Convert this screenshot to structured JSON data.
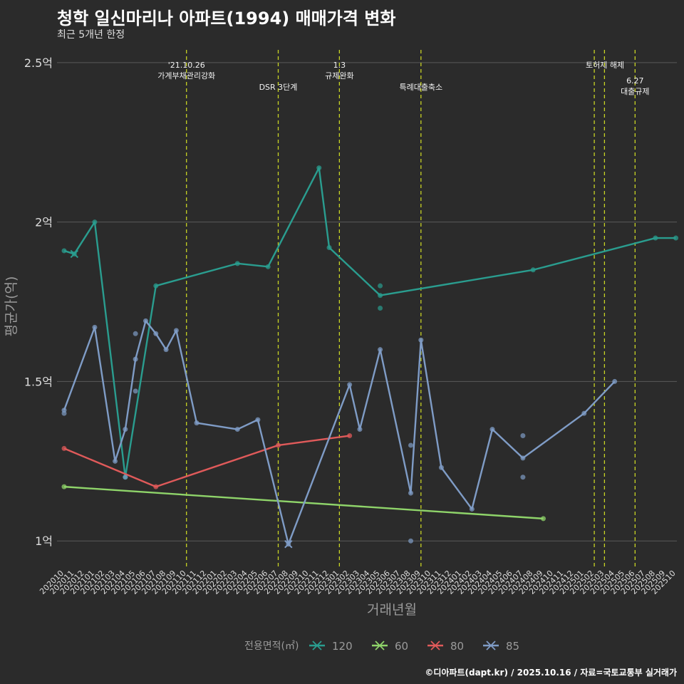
{
  "title": "청학 일신마리나 아파트(1994) 매매가격 변화",
  "subtitle": "최근 5개년 한정",
  "caption": "©디아파트(dapt.kr) / 2025.10.16 / 자료=국토교통부 실거래가",
  "chart_data": {
    "type": "line",
    "xlabel": "거래년월",
    "ylabel": "평균가(억)",
    "y_unit": "억",
    "ylim": [
      0.92,
      2.54
    ],
    "y_ticks": [
      1.0,
      1.5,
      2.0,
      2.5
    ],
    "y_tick_labels": [
      "1억",
      "1.5억",
      "2억",
      "2.5억"
    ],
    "grid": true,
    "categories": [
      "202010",
      "202011",
      "202012",
      "202101",
      "202102",
      "202103",
      "202104",
      "202105",
      "202106",
      "202107",
      "202108",
      "202109",
      "202110",
      "202111",
      "202112",
      "202201",
      "202202",
      "202203",
      "202204",
      "202205",
      "202206",
      "202207",
      "202208",
      "202209",
      "202210",
      "202211",
      "202212",
      "202301",
      "202302",
      "202303",
      "202304",
      "202305",
      "202306",
      "202307",
      "202308",
      "202309",
      "202310",
      "202311",
      "202312",
      "202401",
      "202402",
      "202403",
      "202404",
      "202405",
      "202406",
      "202407",
      "202408",
      "202409",
      "202410",
      "202411",
      "202412",
      "202501",
      "202502",
      "202503",
      "202504",
      "202505",
      "202506",
      "202507",
      "202508",
      "202509",
      "202510"
    ],
    "legend_title": "전용면적(㎡)",
    "legend_position": "bottom",
    "series": [
      {
        "name": "120",
        "color": "#2a9d8f",
        "line": [
          [
            "202010",
            1.91
          ],
          [
            "202011",
            1.9
          ],
          [
            "202101",
            2.0
          ],
          [
            "202104",
            1.2
          ],
          [
            "202107",
            1.8
          ],
          [
            "202203",
            1.87
          ],
          [
            "202206",
            1.86
          ],
          [
            "202211",
            2.17
          ],
          [
            "202212",
            1.92
          ],
          [
            "202305",
            1.77
          ],
          [
            "202408",
            1.85
          ],
          [
            "202508",
            1.95
          ],
          [
            "202510",
            1.95
          ]
        ],
        "extra_points": [
          [
            "202305",
            1.8
          ],
          [
            "202305",
            1.73
          ]
        ],
        "cross_points": [
          [
            "202011",
            1.9
          ]
        ]
      },
      {
        "name": "60",
        "color": "#8fd46a",
        "line": [
          [
            "202010",
            1.17
          ],
          [
            "202409",
            1.07
          ]
        ],
        "extra_points": [],
        "cross_points": []
      },
      {
        "name": "80",
        "color": "#e05a5a",
        "line": [
          [
            "202010",
            1.29
          ],
          [
            "202107",
            1.17
          ],
          [
            "202207",
            1.3
          ],
          [
            "202302",
            1.33
          ]
        ],
        "extra_points": [],
        "cross_points": []
      },
      {
        "name": "85",
        "color": "#7f9cc6",
        "line": [
          [
            "202010",
            1.41
          ],
          [
            "202101",
            1.67
          ],
          [
            "202103",
            1.25
          ],
          [
            "202104",
            1.35
          ],
          [
            "202105",
            1.57
          ],
          [
            "202106",
            1.69
          ],
          [
            "202107",
            1.65
          ],
          [
            "202108",
            1.6
          ],
          [
            "202109",
            1.66
          ],
          [
            "202111",
            1.37
          ],
          [
            "202203",
            1.35
          ],
          [
            "202205",
            1.38
          ],
          [
            "202208",
            0.99
          ],
          [
            "202302",
            1.49
          ],
          [
            "202303",
            1.35
          ],
          [
            "202305",
            1.6
          ],
          [
            "202308",
            1.15
          ],
          [
            "202309",
            1.63
          ],
          [
            "202311",
            1.23
          ],
          [
            "202402",
            1.1
          ],
          [
            "202404",
            1.35
          ],
          [
            "202407",
            1.26
          ],
          [
            "202501",
            1.4
          ],
          [
            "202504",
            1.5
          ]
        ],
        "extra_points": [
          [
            "202010",
            1.4
          ],
          [
            "202104",
            1.2
          ],
          [
            "202105",
            1.65
          ],
          [
            "202105",
            1.47
          ],
          [
            "202308",
            1.3
          ],
          [
            "202308",
            1.0
          ],
          [
            "202407",
            1.33
          ],
          [
            "202407",
            1.2
          ]
        ],
        "cross_points": [
          [
            "202208",
            0.99
          ]
        ]
      }
    ],
    "annotations": [
      {
        "x": "202110",
        "lines": [
          "'21.10.26",
          "가계부채관리강화"
        ],
        "row": 0
      },
      {
        "x": "202207",
        "lines": [
          "DSR 3단계"
        ],
        "row": 1
      },
      {
        "x": "202301",
        "lines": [
          "1.3",
          "규제완화"
        ],
        "row": 0
      },
      {
        "x": "202309",
        "lines": [
          "특례대출축소"
        ],
        "row": 1
      },
      {
        "x": "202502",
        "lines": [
          "토허제 해제"
        ],
        "row": 0,
        "offset": 15
      },
      {
        "x": "202503",
        "lines": [],
        "row": 0
      },
      {
        "x": "202506",
        "lines": [
          "6.27",
          "대출규제"
        ],
        "row": 2
      }
    ],
    "label_colors": {
      "axis": "#9a9a9a",
      "tick": "#dddddd",
      "grid": "#5a5a5a",
      "annotation_line": "#c8d424",
      "annotation_text": "#f2f2f2"
    }
  }
}
